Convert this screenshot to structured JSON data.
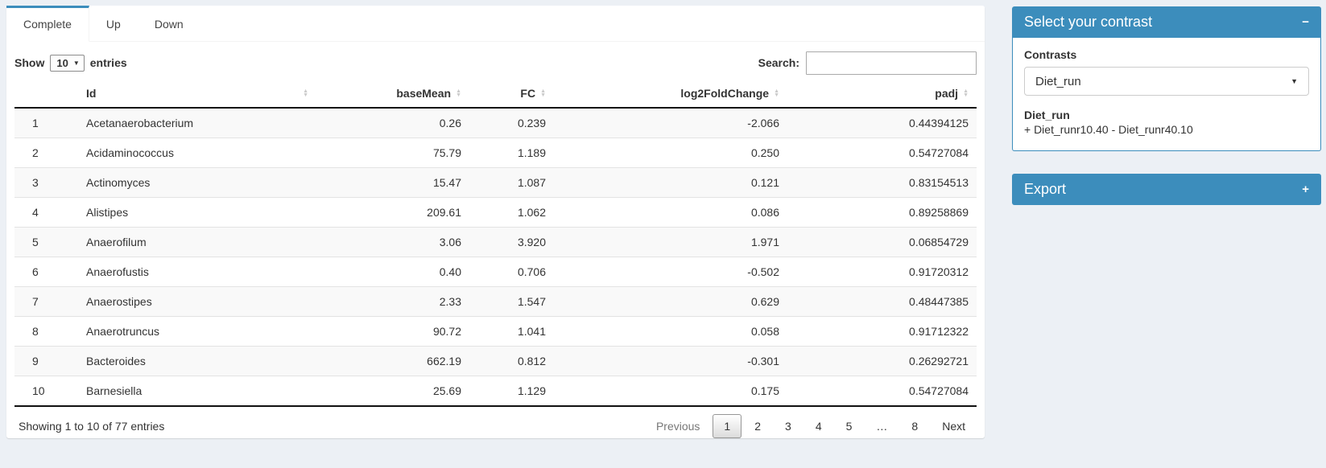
{
  "colors": {
    "primary": "#3c8dbc",
    "page_bg": "#ecf0f5"
  },
  "tabs": {
    "items": [
      {
        "label": "Complete",
        "active": true
      },
      {
        "label": "Up",
        "active": false
      },
      {
        "label": "Down",
        "active": false
      }
    ]
  },
  "controls": {
    "show_label": "Show",
    "length_value": "10",
    "entries_label": "entries",
    "search_label": "Search:",
    "search_value": ""
  },
  "table": {
    "headers": {
      "id": "Id",
      "base_mean": "baseMean",
      "fc": "FC",
      "log2fc": "log2FoldChange",
      "padj": "padj"
    },
    "rows": [
      {
        "n": "1",
        "id": "Acetanaerobacterium",
        "base_mean": "0.26",
        "fc": "0.239",
        "log2fc": "-2.066",
        "padj": "0.44394125"
      },
      {
        "n": "2",
        "id": "Acidaminococcus",
        "base_mean": "75.79",
        "fc": "1.189",
        "log2fc": "0.250",
        "padj": "0.54727084"
      },
      {
        "n": "3",
        "id": "Actinomyces",
        "base_mean": "15.47",
        "fc": "1.087",
        "log2fc": "0.121",
        "padj": "0.83154513"
      },
      {
        "n": "4",
        "id": "Alistipes",
        "base_mean": "209.61",
        "fc": "1.062",
        "log2fc": "0.086",
        "padj": "0.89258869"
      },
      {
        "n": "5",
        "id": "Anaerofilum",
        "base_mean": "3.06",
        "fc": "3.920",
        "log2fc": "1.971",
        "padj": "0.06854729"
      },
      {
        "n": "6",
        "id": "Anaerofustis",
        "base_mean": "0.40",
        "fc": "0.706",
        "log2fc": "-0.502",
        "padj": "0.91720312"
      },
      {
        "n": "7",
        "id": "Anaerostipes",
        "base_mean": "2.33",
        "fc": "1.547",
        "log2fc": "0.629",
        "padj": "0.48447385"
      },
      {
        "n": "8",
        "id": "Anaerotruncus",
        "base_mean": "90.72",
        "fc": "1.041",
        "log2fc": "0.058",
        "padj": "0.91712322"
      },
      {
        "n": "9",
        "id": "Bacteroides",
        "base_mean": "662.19",
        "fc": "0.812",
        "log2fc": "-0.301",
        "padj": "0.26292721"
      },
      {
        "n": "10",
        "id": "Barnesiella",
        "base_mean": "25.69",
        "fc": "1.129",
        "log2fc": "0.175",
        "padj": "0.54727084"
      }
    ]
  },
  "footer": {
    "info": "Showing 1 to 10 of 77 entries",
    "pagination": {
      "previous": "Previous",
      "pages": [
        "1",
        "2",
        "3",
        "4",
        "5",
        "…",
        "8"
      ],
      "current": "1",
      "next": "Next"
    }
  },
  "contrast_panel": {
    "title": "Select your contrast",
    "collapse_icon": "−",
    "contrasts_label": "Contrasts",
    "selected": "Diet_run",
    "detail_name": "Diet_run",
    "detail_formula": "+ Diet_runr10.40 - Diet_runr40.10"
  },
  "export_panel": {
    "title": "Export",
    "expand_icon": "+"
  },
  "icons": {
    "sort_up": "▲",
    "sort_down": "▼",
    "select_caret": "▼",
    "dropdown_caret": "▼"
  }
}
